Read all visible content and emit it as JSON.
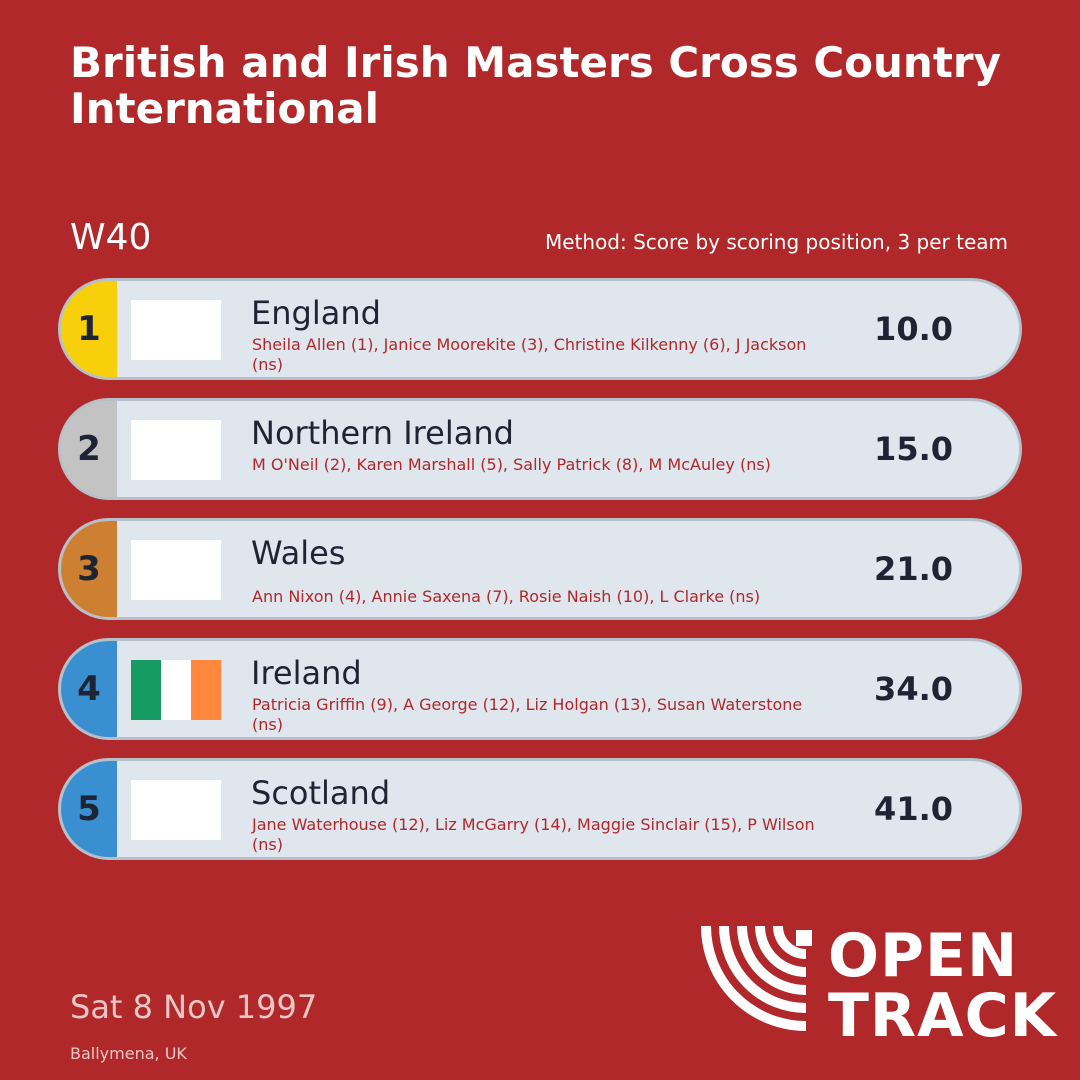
{
  "header": {
    "title": "British and Irish Masters Cross Country International",
    "category": "W40",
    "method": "Method: Score by scoring position, 3 per team"
  },
  "results": [
    {
      "rank": "1",
      "rank_color": "#f7cf0a",
      "team": "England",
      "members": "Sheila Allen (1), Janice Moorekite (3), Christine Kilkenny (6), J Jackson (ns)",
      "score": "10.0",
      "flag": "blank"
    },
    {
      "rank": "2",
      "rank_color": "#c3c3c3",
      "team": "Northern Ireland",
      "members": "M O'Neil (2), Karen Marshall (5), Sally Patrick (8), M McAuley (ns)",
      "score": "15.0",
      "flag": "blank"
    },
    {
      "rank": "3",
      "rank_color": "#cd7f32",
      "team": "Wales",
      "members": "Ann Nixon (4), Annie Saxena (7), Rosie Naish (10), L Clarke (ns)",
      "score": "21.0",
      "flag": "blank"
    },
    {
      "rank": "4",
      "rank_color": "#3a8fd1",
      "team": "Ireland",
      "members": "Patricia Griffin (9), A George (12), Liz Holgan (13), Susan Waterstone (ns)",
      "score": "34.0",
      "flag": "ireland",
      "flag_colors": [
        "#169b62",
        "#ffffff",
        "#ff883e"
      ]
    },
    {
      "rank": "5",
      "rank_color": "#3a8fd1",
      "team": "Scotland",
      "members": "Jane Waterhouse (12), Liz McGarry (14), Maggie Sinclair (15), P Wilson (ns)",
      "score": "41.0",
      "flag": "blank"
    }
  ],
  "footer": {
    "date": "Sat 8 Nov 1997",
    "venue": "Ballymena, UK",
    "logo_line1": "OPEN",
    "logo_line2": "TRACK"
  },
  "colors": {
    "background": "#b0282a",
    "row_background": "#dfe6ee",
    "accent_text": "#b0282a"
  }
}
